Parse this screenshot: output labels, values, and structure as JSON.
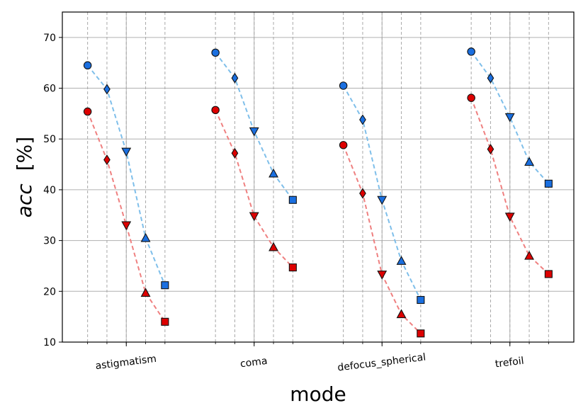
{
  "chart_data": {
    "type": "line",
    "xlabel": "mode",
    "ylabel_italic": "acc",
    "ylabel_unit": "[%]",
    "ylim": [
      10,
      75
    ],
    "yticks": [
      10,
      20,
      30,
      40,
      50,
      60,
      70
    ],
    "grid": true,
    "categories": [
      "astigmatism",
      "coma",
      "defocus_spherical",
      "trefoil"
    ],
    "levels_per_category": 5,
    "markers": [
      "circle",
      "diamond",
      "triangle-down",
      "triangle-up",
      "square"
    ],
    "series": [
      {
        "color": "#1a6fe0",
        "line_color": "#7fbfea",
        "values": [
          [
            64.5,
            59.8,
            47.5,
            30.5,
            21.2
          ],
          [
            67.0,
            62.0,
            51.5,
            43.2,
            38.0
          ],
          [
            60.5,
            53.8,
            38.0,
            26.0,
            18.3
          ],
          [
            67.2,
            62.0,
            54.3,
            45.5,
            41.2
          ]
        ]
      },
      {
        "color": "#dd0000",
        "line_color": "#ef8080",
        "values": [
          [
            55.4,
            45.9,
            33.0,
            19.7,
            14.0
          ],
          [
            55.7,
            47.2,
            34.8,
            28.7,
            24.7
          ],
          [
            48.8,
            39.3,
            23.3,
            15.5,
            11.7
          ],
          [
            58.1,
            48.0,
            34.7,
            27.0,
            23.4
          ]
        ]
      }
    ]
  }
}
